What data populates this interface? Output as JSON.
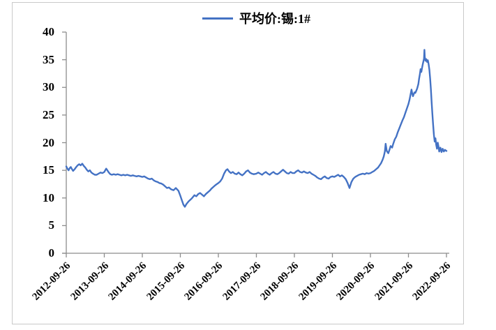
{
  "colors": {
    "line": "#4472C4",
    "axis": "#8c8c8c",
    "figure_border": "#c9c9c9",
    "background": "#ffffff",
    "text": "#000000"
  },
  "chart_data": {
    "type": "line",
    "title": "",
    "legend": "平均价:锡:1#",
    "legend_position": "top-center",
    "grid": false,
    "xlim": [
      0,
      10
    ],
    "ylim": [
      0,
      40
    ],
    "y_ticks": [
      0,
      5,
      10,
      15,
      20,
      25,
      30,
      35,
      40
    ],
    "x_tick_labels": [
      "2012-09-26",
      "2013-09-26",
      "2014-09-26",
      "2015-09-26",
      "2016-09-26",
      "2017-09-26",
      "2018-09-26",
      "2019-09-26",
      "2020-09-26",
      "2021-09-26",
      "2022-09-26"
    ],
    "x_unit": "years since 2012-09-26",
    "series": [
      {
        "name": "平均价:锡:1#",
        "color": "#4472C4",
        "points": [
          [
            0.0,
            15.7
          ],
          [
            0.03,
            15.3
          ],
          [
            0.06,
            15.0
          ],
          [
            0.09,
            15.4
          ],
          [
            0.12,
            15.6
          ],
          [
            0.15,
            15.2
          ],
          [
            0.18,
            14.9
          ],
          [
            0.22,
            15.2
          ],
          [
            0.26,
            15.6
          ],
          [
            0.3,
            15.9
          ],
          [
            0.34,
            16.1
          ],
          [
            0.38,
            15.9
          ],
          [
            0.42,
            16.2
          ],
          [
            0.46,
            15.8
          ],
          [
            0.5,
            15.5
          ],
          [
            0.54,
            15.1
          ],
          [
            0.58,
            14.8
          ],
          [
            0.62,
            15.0
          ],
          [
            0.66,
            14.6
          ],
          [
            0.7,
            14.4
          ],
          [
            0.75,
            14.2
          ],
          [
            0.8,
            14.2
          ],
          [
            0.85,
            14.4
          ],
          [
            0.9,
            14.6
          ],
          [
            0.95,
            14.5
          ],
          [
            1.0,
            14.7
          ],
          [
            1.05,
            15.3
          ],
          [
            1.08,
            15.0
          ],
          [
            1.12,
            14.6
          ],
          [
            1.16,
            14.3
          ],
          [
            1.2,
            14.2
          ],
          [
            1.25,
            14.3
          ],
          [
            1.3,
            14.2
          ],
          [
            1.35,
            14.3
          ],
          [
            1.4,
            14.2
          ],
          [
            1.45,
            14.1
          ],
          [
            1.5,
            14.2
          ],
          [
            1.55,
            14.1
          ],
          [
            1.6,
            14.2
          ],
          [
            1.65,
            14.1
          ],
          [
            1.7,
            14.0
          ],
          [
            1.75,
            14.1
          ],
          [
            1.8,
            14.0
          ],
          [
            1.85,
            13.9
          ],
          [
            1.9,
            14.0
          ],
          [
            1.95,
            13.9
          ],
          [
            2.0,
            13.8
          ],
          [
            2.05,
            13.9
          ],
          [
            2.1,
            13.7
          ],
          [
            2.15,
            13.5
          ],
          [
            2.2,
            13.4
          ],
          [
            2.25,
            13.5
          ],
          [
            2.3,
            13.2
          ],
          [
            2.35,
            13.0
          ],
          [
            2.4,
            12.9
          ],
          [
            2.45,
            12.7
          ],
          [
            2.5,
            12.6
          ],
          [
            2.55,
            12.4
          ],
          [
            2.6,
            12.1
          ],
          [
            2.65,
            11.8
          ],
          [
            2.7,
            11.9
          ],
          [
            2.75,
            11.6
          ],
          [
            2.82,
            11.4
          ],
          [
            2.88,
            11.8
          ],
          [
            2.95,
            11.3
          ],
          [
            3.0,
            10.4
          ],
          [
            3.05,
            9.4
          ],
          [
            3.08,
            8.8
          ],
          [
            3.12,
            8.4
          ],
          [
            3.16,
            8.9
          ],
          [
            3.22,
            9.4
          ],
          [
            3.3,
            9.9
          ],
          [
            3.37,
            10.5
          ],
          [
            3.42,
            10.3
          ],
          [
            3.47,
            10.7
          ],
          [
            3.52,
            10.9
          ],
          [
            3.57,
            10.6
          ],
          [
            3.62,
            10.3
          ],
          [
            3.67,
            10.7
          ],
          [
            3.72,
            11.0
          ],
          [
            3.77,
            11.3
          ],
          [
            3.82,
            11.7
          ],
          [
            3.87,
            12.0
          ],
          [
            3.92,
            12.3
          ],
          [
            3.96,
            12.5
          ],
          [
            4.0,
            12.7
          ],
          [
            4.05,
            13.0
          ],
          [
            4.1,
            13.5
          ],
          [
            4.15,
            14.4
          ],
          [
            4.2,
            15.0
          ],
          [
            4.24,
            15.2
          ],
          [
            4.28,
            14.8
          ],
          [
            4.33,
            14.5
          ],
          [
            4.38,
            14.7
          ],
          [
            4.43,
            14.4
          ],
          [
            4.48,
            14.3
          ],
          [
            4.53,
            14.6
          ],
          [
            4.58,
            14.3
          ],
          [
            4.63,
            14.1
          ],
          [
            4.68,
            14.4
          ],
          [
            4.73,
            14.8
          ],
          [
            4.78,
            15.0
          ],
          [
            4.83,
            14.6
          ],
          [
            4.88,
            14.4
          ],
          [
            4.93,
            14.3
          ],
          [
            5.0,
            14.4
          ],
          [
            5.05,
            14.6
          ],
          [
            5.1,
            14.4
          ],
          [
            5.15,
            14.2
          ],
          [
            5.2,
            14.5
          ],
          [
            5.25,
            14.7
          ],
          [
            5.3,
            14.4
          ],
          [
            5.35,
            14.2
          ],
          [
            5.4,
            14.5
          ],
          [
            5.45,
            14.7
          ],
          [
            5.5,
            14.4
          ],
          [
            5.55,
            14.3
          ],
          [
            5.6,
            14.5
          ],
          [
            5.65,
            14.8
          ],
          [
            5.7,
            15.1
          ],
          [
            5.75,
            14.8
          ],
          [
            5.8,
            14.5
          ],
          [
            5.85,
            14.4
          ],
          [
            5.9,
            14.7
          ],
          [
            5.95,
            14.5
          ],
          [
            6.0,
            14.5
          ],
          [
            6.05,
            14.8
          ],
          [
            6.1,
            15.0
          ],
          [
            6.15,
            14.7
          ],
          [
            6.2,
            14.6
          ],
          [
            6.25,
            14.8
          ],
          [
            6.3,
            14.6
          ],
          [
            6.35,
            14.5
          ],
          [
            6.4,
            14.7
          ],
          [
            6.45,
            14.4
          ],
          [
            6.5,
            14.2
          ],
          [
            6.55,
            14.0
          ],
          [
            6.6,
            13.7
          ],
          [
            6.65,
            13.5
          ],
          [
            6.7,
            13.4
          ],
          [
            6.75,
            13.7
          ],
          [
            6.8,
            13.9
          ],
          [
            6.85,
            13.6
          ],
          [
            6.9,
            13.5
          ],
          [
            6.95,
            13.8
          ],
          [
            7.0,
            13.9
          ],
          [
            7.05,
            13.8
          ],
          [
            7.1,
            14.0
          ],
          [
            7.15,
            14.2
          ],
          [
            7.2,
            13.9
          ],
          [
            7.25,
            14.1
          ],
          [
            7.3,
            13.8
          ],
          [
            7.35,
            13.4
          ],
          [
            7.4,
            12.7
          ],
          [
            7.45,
            11.8
          ],
          [
            7.5,
            12.9
          ],
          [
            7.55,
            13.5
          ],
          [
            7.6,
            13.8
          ],
          [
            7.65,
            14.0
          ],
          [
            7.7,
            14.2
          ],
          [
            7.75,
            14.3
          ],
          [
            7.8,
            14.4
          ],
          [
            7.85,
            14.3
          ],
          [
            7.9,
            14.5
          ],
          [
            7.95,
            14.4
          ],
          [
            8.0,
            14.5
          ],
          [
            8.05,
            14.7
          ],
          [
            8.1,
            14.9
          ],
          [
            8.15,
            15.2
          ],
          [
            8.2,
            15.5
          ],
          [
            8.24,
            15.9
          ],
          [
            8.28,
            16.3
          ],
          [
            8.32,
            16.9
          ],
          [
            8.35,
            17.5
          ],
          [
            8.38,
            18.4
          ],
          [
            8.4,
            19.8
          ],
          [
            8.43,
            18.5
          ],
          [
            8.47,
            18.1
          ],
          [
            8.5,
            18.7
          ],
          [
            8.53,
            19.4
          ],
          [
            8.57,
            19.1
          ],
          [
            8.6,
            19.8
          ],
          [
            8.64,
            20.6
          ],
          [
            8.68,
            21.1
          ],
          [
            8.72,
            21.9
          ],
          [
            8.76,
            22.6
          ],
          [
            8.8,
            23.3
          ],
          [
            8.84,
            24.0
          ],
          [
            8.88,
            24.6
          ],
          [
            8.92,
            25.4
          ],
          [
            8.96,
            26.2
          ],
          [
            9.0,
            27.0
          ],
          [
            9.03,
            27.8
          ],
          [
            9.06,
            28.9
          ],
          [
            9.08,
            29.6
          ],
          [
            9.1,
            28.9
          ],
          [
            9.12,
            28.4
          ],
          [
            9.14,
            28.8
          ],
          [
            9.16,
            29.1
          ],
          [
            9.18,
            29.0
          ],
          [
            9.2,
            29.3
          ],
          [
            9.23,
            29.8
          ],
          [
            9.26,
            30.6
          ],
          [
            9.28,
            31.6
          ],
          [
            9.3,
            32.4
          ],
          [
            9.32,
            33.3
          ],
          [
            9.34,
            32.8
          ],
          [
            9.36,
            33.6
          ],
          [
            9.38,
            34.3
          ],
          [
            9.4,
            34.9
          ],
          [
            9.41,
            35.2
          ],
          [
            9.42,
            36.8
          ],
          [
            9.43,
            35.5
          ],
          [
            9.45,
            34.8
          ],
          [
            9.47,
            35.1
          ],
          [
            9.49,
            34.6
          ],
          [
            9.51,
            34.9
          ],
          [
            9.53,
            34.2
          ],
          [
            9.55,
            33.2
          ],
          [
            9.57,
            31.6
          ],
          [
            9.59,
            29.6
          ],
          [
            9.61,
            27.4
          ],
          [
            9.63,
            25.2
          ],
          [
            9.65,
            23.2
          ],
          [
            9.67,
            21.4
          ],
          [
            9.69,
            20.2
          ],
          [
            9.71,
            20.8
          ],
          [
            9.73,
            19.6
          ],
          [
            9.75,
            18.9
          ],
          [
            9.77,
            20.0
          ],
          [
            9.79,
            19.3
          ],
          [
            9.81,
            18.4
          ],
          [
            9.84,
            19.1
          ],
          [
            9.87,
            18.3
          ],
          [
            9.9,
            18.9
          ],
          [
            9.93,
            18.4
          ],
          [
            9.96,
            18.7
          ],
          [
            10.0,
            18.5
          ]
        ]
      }
    ]
  }
}
